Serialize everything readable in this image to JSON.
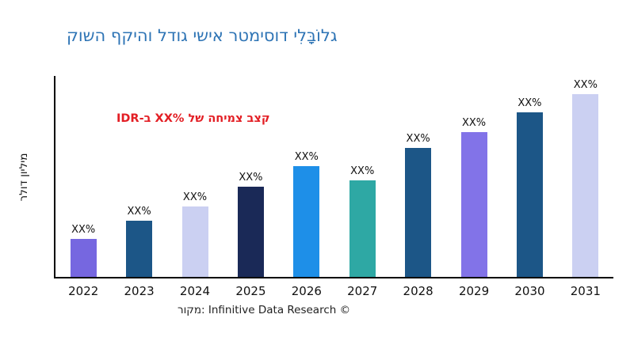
{
  "title": "גלוֹבָּלִי דוסימטר אישי גודל והיקף השוק",
  "annotation": {
    "prefix": "קצב צמיחה של",
    "value": "XX%",
    "suffix": "ב-IDR"
  },
  "caption": "מקור: Infinitive Data Research ©",
  "colors": {
    "title": "#2E74B5",
    "annotation": "#E31E24",
    "axis": "#000000",
    "text": "#111111"
  },
  "chart_data": {
    "type": "bar",
    "title": "גלוֹבָּלִי דוסימטר אישי גודל והיקף השוק",
    "xlabel": "",
    "ylabel": "מיליון דולר",
    "categories": [
      "2022",
      "2023",
      "2024",
      "2025",
      "2026",
      "2027",
      "2028",
      "2029",
      "2030",
      "2031"
    ],
    "values": [
      19,
      28,
      35,
      45,
      55,
      48,
      64,
      72,
      82,
      91
    ],
    "value_labels": [
      "XX%",
      "XX%",
      "XX%",
      "XX%",
      "XX%",
      "XX%",
      "XX%",
      "XX%",
      "XX%",
      "XX%"
    ],
    "colors": [
      "#7667E0",
      "#1C5687",
      "#CBD0F2",
      "#1A2957",
      "#1E8FE8",
      "#2EA8A4",
      "#1C5687",
      "#8273E8",
      "#1C5687",
      "#CBD0F2"
    ],
    "ylim": [
      0,
      100
    ],
    "grid": false,
    "legend": false,
    "annotations": [
      "קצב צמיחה של XX% ב-IDR"
    ],
    "source": "מקור: Infinitive Data Research ©"
  }
}
